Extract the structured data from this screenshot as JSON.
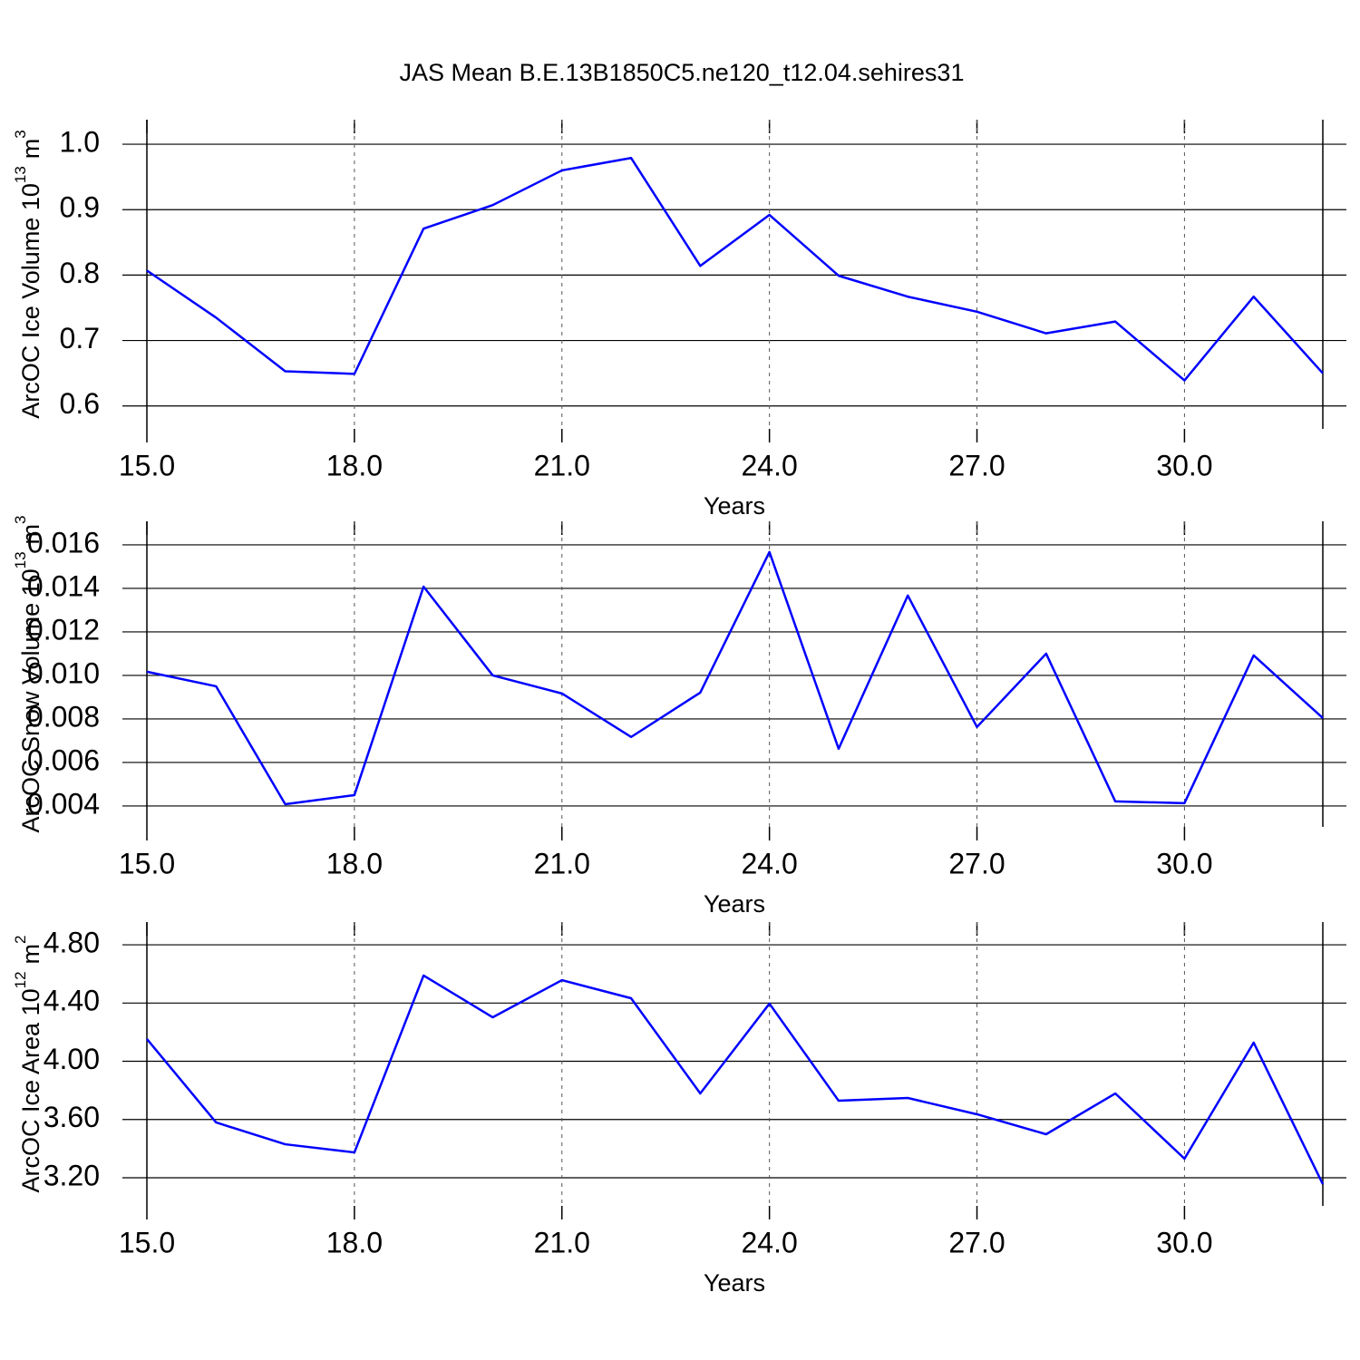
{
  "title": "JAS Mean B.E.13B1850C5.ne120_t12.04.sehires31",
  "chart_data": [
    {
      "type": "line",
      "ylabel": [
        "ArcOC Ice Volume 10",
        "13",
        "m",
        "3"
      ],
      "xlabel": "Years",
      "x": [
        15,
        16,
        17,
        18,
        19,
        20,
        21,
        22,
        23,
        24,
        25,
        26,
        27,
        28,
        29,
        30,
        31,
        32
      ],
      "series": [
        {
          "color": "#0000ff",
          "values": [
            0.807,
            0.735,
            0.653,
            0.649,
            0.871,
            0.907,
            0.96,
            0.979,
            0.814,
            0.892,
            0.799,
            0.767,
            0.744,
            0.711,
            0.729,
            0.639,
            0.767,
            0.65
          ]
        }
      ],
      "xlim": [
        15,
        32
      ],
      "xticks": [
        {
          "value": 15,
          "label": "15.0"
        },
        {
          "value": 18,
          "label": "18.0"
        },
        {
          "value": 21,
          "label": "21.0"
        },
        {
          "value": 24,
          "label": "24.0"
        },
        {
          "value": 27,
          "label": "27.0"
        },
        {
          "value": 30,
          "label": "30.0"
        }
      ],
      "ylim": [
        0.565,
        1.0375
      ],
      "yticks": [
        0.6,
        0.7,
        0.8,
        0.9,
        {
          "value": 1,
          "label": "1.0"
        }
      ],
      "grid": true
    },
    {
      "type": "line",
      "ylabel": [
        "ArcOC Snow Volume 10",
        "13",
        "m",
        "3"
      ],
      "xlabel": "Years",
      "x": [
        15,
        16,
        17,
        18,
        19,
        20,
        21,
        22,
        23,
        24,
        25,
        26,
        27,
        28,
        29,
        30,
        31,
        32
      ],
      "series": [
        {
          "color": "#0000ff",
          "values": [
            0.01017,
            0.0095,
            0.00408,
            0.0045,
            0.01408,
            0.01,
            0.00917,
            0.00717,
            0.00921,
            0.01567,
            0.00663,
            0.01367,
            0.00763,
            0.011,
            0.00421,
            0.00413,
            0.01092,
            0.00804
          ]
        }
      ],
      "xlim": [
        15,
        32
      ],
      "xticks": [
        {
          "value": 15,
          "label": "15.0"
        },
        {
          "value": 18,
          "label": "18.0"
        },
        {
          "value": 21,
          "label": "21.0"
        },
        {
          "value": 24,
          "label": "24.0"
        },
        {
          "value": 27,
          "label": "27.0"
        },
        {
          "value": 30,
          "label": "30.0"
        }
      ],
      "ylim": [
        0.00304,
        0.01708
      ],
      "yticks": [
        0.004,
        0.006,
        0.008,
        {
          "value": 0.01,
          "label": "0.010"
        },
        0.012,
        0.014,
        0.016
      ],
      "grid": true
    },
    {
      "type": "line",
      "ylabel": [
        "ArcOC Ice Area 10",
        "12",
        "m",
        "2"
      ],
      "xlabel": "Years",
      "x": [
        15,
        16,
        17,
        18,
        19,
        20,
        21,
        22,
        23,
        24,
        25,
        26,
        27,
        28,
        29,
        30,
        31,
        32
      ],
      "series": [
        {
          "color": "#0000ff",
          "values": [
            4.153,
            3.58,
            3.43,
            3.374,
            4.589,
            4.302,
            4.557,
            4.433,
            3.779,
            4.396,
            3.729,
            3.748,
            3.636,
            3.499,
            3.779,
            3.331,
            4.128,
            3.156
          ]
        }
      ],
      "xlim": [
        15,
        32
      ],
      "xticks": [
        {
          "value": 15,
          "label": "15.0"
        },
        {
          "value": 18,
          "label": "18.0"
        },
        {
          "value": 21,
          "label": "21.0"
        },
        {
          "value": 24,
          "label": "24.0"
        },
        {
          "value": 27,
          "label": "27.0"
        },
        {
          "value": 30,
          "label": "30.0"
        }
      ],
      "ylim": [
        3.007,
        4.956
      ],
      "yticks": [
        {
          "value": 3.2,
          "label": "3.20"
        },
        {
          "value": 3.6,
          "label": "3.60"
        },
        {
          "value": 4,
          "label": "4.00"
        },
        {
          "value": 4.4,
          "label": "4.40"
        },
        {
          "value": 4.8,
          "label": "4.80"
        }
      ],
      "grid": true
    }
  ]
}
